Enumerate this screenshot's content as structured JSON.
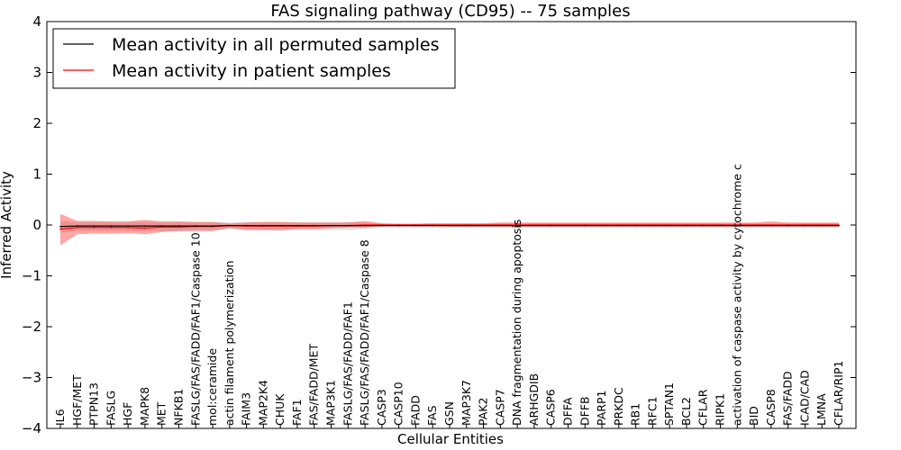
{
  "chart_data": {
    "type": "line",
    "title": "FAS signaling pathway (CD95) -- 75 samples",
    "xlabel": "Cellular Entities",
    "ylabel": "Inferred Activity",
    "ylim": [
      -4,
      4
    ],
    "yticks": [
      -4,
      -3,
      -2,
      -1,
      0,
      1,
      2,
      3,
      4
    ],
    "ytick_labels": [
      "−4",
      "−3",
      "−2",
      "−1",
      "0",
      "1",
      "2",
      "3",
      "4"
    ],
    "legend_position": "top-left",
    "categories": [
      "IL6",
      "HGF/MET",
      "PTPN13",
      "FASLG",
      "HGF",
      "MAPK8",
      "MET",
      "NFKB1",
      "FASLG/FAS/FADD/FAF1/Caspase 10",
      "mol:ceramide",
      "actin filament polymerization",
      "FAIM3",
      "MAP2K4",
      "CHUK",
      "FAF1",
      "FAS/FADD/MET",
      "MAP3K1",
      "FASLG/FAS/FADD/FAF1",
      "FASLG/FAS/FADD/FAF1/Caspase 8",
      "CASP3",
      "CASP10",
      "FADD",
      "FAS",
      "GSN",
      "MAP3K7",
      "PAK2",
      "CASP7",
      "DNA fragmentation during apoptosis",
      "ARHGDIB",
      "CASP6",
      "DFFA",
      "DFFB",
      "PARP1",
      "PRKDC",
      "RB1",
      "RFC1",
      "SPTAN1",
      "BCL2",
      "CFLAR",
      "RIPK1",
      "activation of caspase activity by cytochrome c",
      "BID",
      "CASP8",
      "FAS/FADD",
      "ICAD/CAD",
      "LMNA",
      "CFLAR/RIP1"
    ],
    "series": [
      {
        "name": "Mean activity in all permuted samples",
        "color": "#000000",
        "values": [
          -0.03,
          -0.02,
          -0.02,
          -0.02,
          -0.02,
          -0.02,
          -0.02,
          -0.02,
          -0.02,
          -0.02,
          -0.01,
          -0.01,
          -0.01,
          -0.01,
          -0.01,
          -0.01,
          -0.01,
          -0.01,
          -0.01,
          -0.01,
          -0.01,
          -0.01,
          -0.01,
          -0.01,
          -0.01,
          -0.01,
          -0.01,
          -0.01,
          -0.01,
          -0.01,
          -0.01,
          -0.01,
          -0.01,
          -0.01,
          -0.01,
          -0.01,
          -0.01,
          -0.01,
          -0.01,
          -0.01,
          -0.01,
          -0.01,
          -0.01,
          -0.01,
          -0.01,
          -0.01,
          -0.01
        ],
        "band_low": [
          -0.15,
          -0.12,
          -0.12,
          -0.12,
          -0.12,
          -0.12,
          -0.12,
          -0.12,
          -0.1,
          -0.1,
          -0.08,
          -0.1,
          -0.1,
          -0.12,
          -0.1,
          -0.1,
          -0.1,
          -0.1,
          -0.08,
          -0.06,
          -0.06,
          -0.06,
          -0.06,
          -0.06,
          -0.06,
          -0.06,
          -0.06,
          -0.06,
          -0.06,
          -0.06,
          -0.06,
          -0.06,
          -0.06,
          -0.06,
          -0.06,
          -0.06,
          -0.06,
          -0.06,
          -0.06,
          -0.06,
          -0.06,
          -0.06,
          -0.06,
          -0.06,
          -0.06,
          -0.06,
          -0.06
        ],
        "band_high": [
          0.08,
          0.06,
          0.06,
          0.06,
          0.06,
          0.06,
          0.06,
          0.06,
          0.06,
          0.06,
          0.05,
          0.06,
          0.06,
          0.06,
          0.06,
          0.06,
          0.06,
          0.06,
          0.05,
          0.04,
          0.04,
          0.04,
          0.04,
          0.04,
          0.04,
          0.04,
          0.04,
          0.04,
          0.04,
          0.04,
          0.04,
          0.04,
          0.04,
          0.04,
          0.04,
          0.04,
          0.04,
          0.04,
          0.04,
          0.04,
          0.04,
          0.04,
          0.04,
          0.04,
          0.04,
          0.04,
          0.04
        ]
      },
      {
        "name": "Mean activity in patient samples",
        "color": "#ff0000",
        "values": [
          -0.08,
          -0.05,
          -0.05,
          -0.05,
          -0.05,
          -0.06,
          -0.04,
          -0.04,
          -0.03,
          -0.03,
          -0.01,
          -0.02,
          -0.02,
          -0.02,
          -0.02,
          -0.02,
          -0.01,
          -0.01,
          0.0,
          0.0,
          0.0,
          0.0,
          0.0,
          0.0,
          0.0,
          0.0,
          0.0,
          0.0,
          0.0,
          0.0,
          0.0,
          0.0,
          0.0,
          0.0,
          0.0,
          0.0,
          0.0,
          0.0,
          0.0,
          0.0,
          0.0,
          0.0,
          0.0,
          0.0,
          0.0,
          0.0,
          0.0
        ],
        "band_low": [
          -0.4,
          -0.18,
          -0.17,
          -0.17,
          -0.16,
          -0.18,
          -0.14,
          -0.12,
          -0.12,
          -0.12,
          -0.06,
          -0.1,
          -0.1,
          -0.1,
          -0.08,
          -0.08,
          -0.06,
          -0.05,
          -0.05,
          -0.02,
          -0.02,
          -0.02,
          -0.02,
          -0.03,
          -0.03,
          -0.03,
          -0.03,
          -0.03,
          -0.03,
          -0.03,
          -0.03,
          -0.03,
          -0.03,
          -0.03,
          -0.03,
          -0.03,
          -0.03,
          -0.03,
          -0.03,
          -0.03,
          -0.03,
          -0.03,
          -0.03,
          -0.03,
          -0.03,
          -0.03,
          -0.03
        ],
        "band_high": [
          0.22,
          0.08,
          0.08,
          0.07,
          0.07,
          0.1,
          0.07,
          0.07,
          0.06,
          0.06,
          0.03,
          0.05,
          0.06,
          0.06,
          0.05,
          0.05,
          0.05,
          0.05,
          0.08,
          0.03,
          0.02,
          0.02,
          0.03,
          0.03,
          0.03,
          0.03,
          0.05,
          0.05,
          0.05,
          0.05,
          0.05,
          0.05,
          0.05,
          0.05,
          0.05,
          0.05,
          0.05,
          0.05,
          0.05,
          0.05,
          0.05,
          0.05,
          0.07,
          0.05,
          0.05,
          0.05,
          0.05
        ]
      }
    ]
  }
}
